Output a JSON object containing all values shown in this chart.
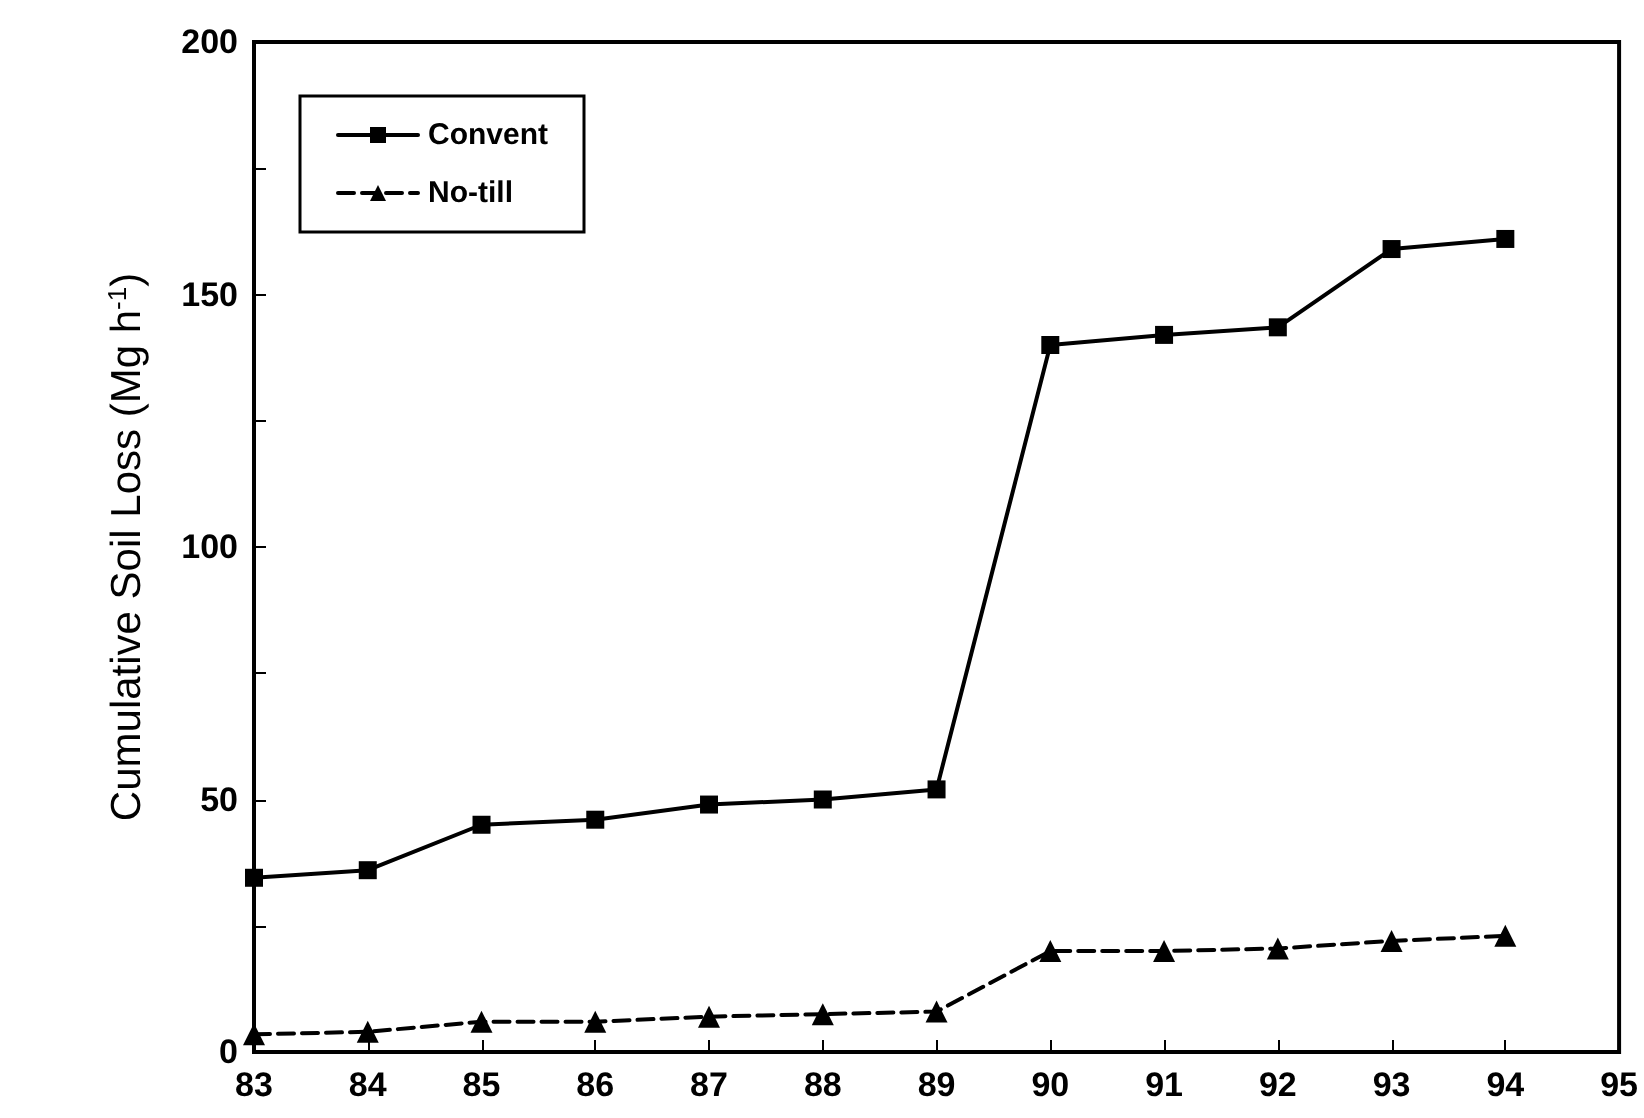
{
  "chart_data": {
    "type": "line",
    "ylabel": "Cumulative Soil Loss (Mg h$^{-1}$)",
    "x": [
      83,
      84,
      85,
      86,
      87,
      88,
      89,
      90,
      91,
      92,
      93,
      94
    ],
    "series": [
      {
        "name": "Convent",
        "color": "#000000",
        "marker": "square",
        "line_style": "solid",
        "values": [
          34.5,
          36,
          45,
          46,
          49,
          50,
          52,
          140,
          142,
          143.5,
          159,
          161
        ]
      },
      {
        "name": "No-till",
        "color": "#000000",
        "marker": "triangle",
        "line_style": "dashed",
        "values": [
          3.5,
          4,
          6,
          6,
          7,
          7.5,
          8,
          20,
          20,
          20.5,
          22,
          23
        ]
      }
    ],
    "xlim": [
      83,
      95
    ],
    "xticks": [
      83,
      84,
      85,
      86,
      87,
      88,
      89,
      90,
      91,
      92,
      93,
      94,
      95
    ],
    "ylim": [
      0,
      200
    ],
    "yticks": [
      0,
      {
        "value": 25,
        "label": null
      },
      50,
      {
        "value": 75,
        "label": null
      },
      100,
      {
        "value": 125,
        "label": null
      },
      150,
      {
        "value": 175,
        "label": null
      },
      200
    ],
    "grid": false,
    "legend": "top left"
  }
}
